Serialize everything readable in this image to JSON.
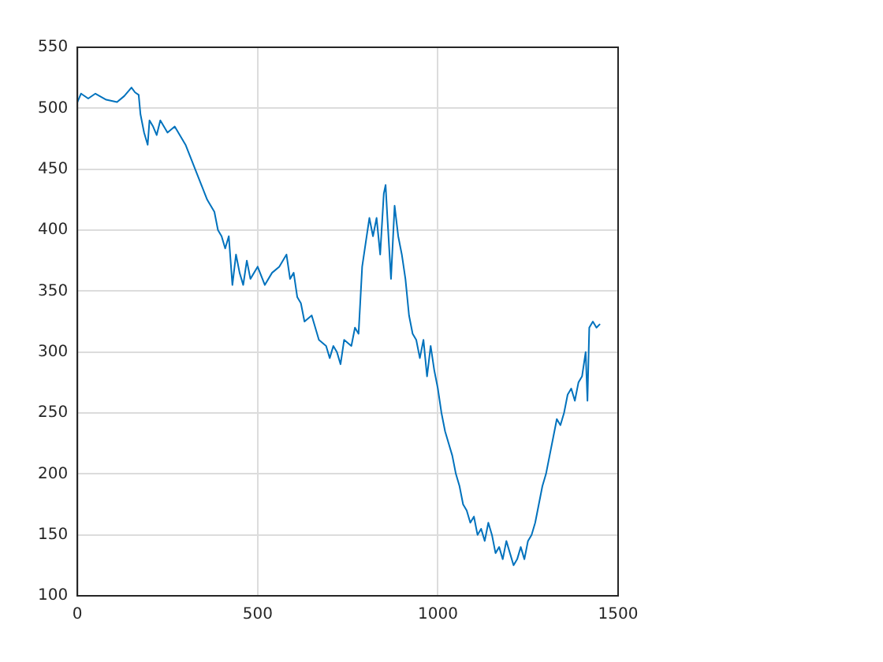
{
  "chart_data": {
    "type": "line",
    "x": [
      0,
      10,
      30,
      50,
      80,
      110,
      130,
      150,
      160,
      170,
      175,
      185,
      195,
      200,
      210,
      220,
      230,
      250,
      270,
      290,
      300,
      320,
      340,
      360,
      380,
      390,
      400,
      410,
      420,
      430,
      440,
      450,
      460,
      470,
      480,
      500,
      520,
      540,
      560,
      580,
      590,
      600,
      610,
      620,
      630,
      650,
      670,
      690,
      700,
      710,
      720,
      730,
      740,
      760,
      770,
      780,
      790,
      800,
      810,
      820,
      830,
      840,
      850,
      855,
      860,
      870,
      880,
      890,
      900,
      910,
      920,
      930,
      940,
      950,
      960,
      970,
      980,
      990,
      1000,
      1010,
      1020,
      1030,
      1040,
      1050,
      1060,
      1070,
      1080,
      1090,
      1100,
      1110,
      1120,
      1130,
      1140,
      1150,
      1160,
      1170,
      1180,
      1190,
      1200,
      1210,
      1220,
      1230,
      1240,
      1250,
      1260,
      1270,
      1280,
      1290,
      1300,
      1310,
      1320,
      1330,
      1340,
      1350,
      1360,
      1370,
      1380,
      1390,
      1400,
      1410,
      1415,
      1420,
      1430,
      1440,
      1450
    ],
    "series": [
      {
        "color": "#0072bd",
        "values": [
          505,
          512,
          508,
          512,
          507,
          505,
          510,
          517,
          513,
          511,
          495,
          480,
          470,
          490,
          485,
          478,
          490,
          480,
          485,
          475,
          470,
          455,
          440,
          425,
          415,
          400,
          395,
          385,
          395,
          355,
          380,
          365,
          355,
          375,
          360,
          370,
          355,
          365,
          370,
          380,
          360,
          365,
          345,
          340,
          325,
          330,
          310,
          305,
          295,
          305,
          300,
          290,
          310,
          305,
          320,
          315,
          370,
          390,
          410,
          395,
          410,
          380,
          430,
          437,
          410,
          360,
          420,
          395,
          380,
          360,
          330,
          315,
          310,
          295,
          310,
          280,
          305,
          285,
          270,
          250,
          235,
          225,
          215,
          200,
          190,
          175,
          170,
          160,
          165,
          150,
          155,
          145,
          160,
          150,
          135,
          140,
          130,
          145,
          135,
          125,
          130,
          140,
          130,
          145,
          150,
          160,
          175,
          190,
          200,
          215,
          230,
          245,
          240,
          250,
          265,
          270,
          260,
          275,
          280,
          300,
          260,
          320,
          325,
          320,
          323
        ]
      }
    ],
    "xlim": [
      0,
      1500
    ],
    "xticks": [
      0,
      500,
      1000,
      1500
    ],
    "ylim": [
      100,
      550
    ],
    "yticks": [
      100,
      150,
      200,
      250,
      300,
      350,
      400,
      450,
      500,
      550
    ],
    "grid": true,
    "legend": false,
    "marker": "none",
    "line_style": "solid"
  }
}
